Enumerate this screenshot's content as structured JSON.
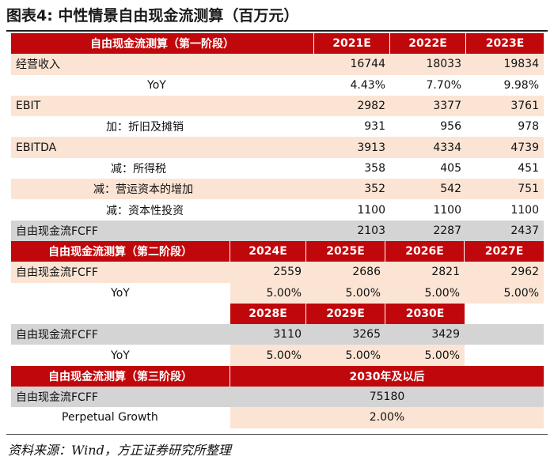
{
  "title": "图表4:   中性情景自由现金流测算（百万元）",
  "stage1": {
    "header": "自由现金流测算（第一阶段）",
    "years": [
      "2021E",
      "2022E",
      "2023E"
    ],
    "rows": [
      {
        "label": "经营收入",
        "values": [
          "16744",
          "18033",
          "19834"
        ]
      },
      {
        "label": "YoY",
        "values": [
          "4.43%",
          "7.70%",
          "9.98%"
        ]
      },
      {
        "label": "EBIT",
        "values": [
          "2982",
          "3377",
          "3761"
        ]
      },
      {
        "label": "加：折旧及摊销",
        "values": [
          "931",
          "956",
          "978"
        ]
      },
      {
        "label": "EBITDA",
        "values": [
          "3913",
          "4334",
          "4739"
        ]
      },
      {
        "label": "减：所得税",
        "values": [
          "358",
          "405",
          "451"
        ]
      },
      {
        "label": "减：营运资本的增加",
        "values": [
          "352",
          "542",
          "751"
        ]
      },
      {
        "label": "减：资本性投资",
        "values": [
          "1100",
          "1100",
          "1100"
        ]
      },
      {
        "label": "自由现金流FCFF",
        "values": [
          "2103",
          "2287",
          "2437"
        ]
      }
    ]
  },
  "stage2": {
    "header": "自由现金流测算（第二阶段）",
    "years_a": [
      "2024E",
      "2025E",
      "2026E",
      "2027E"
    ],
    "fcff_label": "自由现金流FCFF",
    "fcff_a": [
      "2559",
      "2686",
      "2821",
      "2962"
    ],
    "yoy_label": "YoY",
    "yoy_a": [
      "5.00%",
      "5.00%",
      "5.00%",
      "5.00%"
    ],
    "years_b": [
      "2028E",
      "2029E",
      "2030E"
    ],
    "fcff_b": [
      "3110",
      "3265",
      "3429"
    ],
    "yoy_b": [
      "5.00%",
      "5.00%",
      "5.00%"
    ]
  },
  "stage3": {
    "header": "自由现金流测算（第三阶段）",
    "period": "2030年及以后",
    "fcff_label": "自由现金流FCFF",
    "fcff_value": "75180",
    "growth_label": "Perpetual Growth",
    "growth_value": "2.00%"
  },
  "source": "资料来源：Wind，方正证券研究所整理",
  "colors": {
    "header_red": "#c0070b",
    "peach": "#fce4d4",
    "grey": "#d4d4d4"
  }
}
